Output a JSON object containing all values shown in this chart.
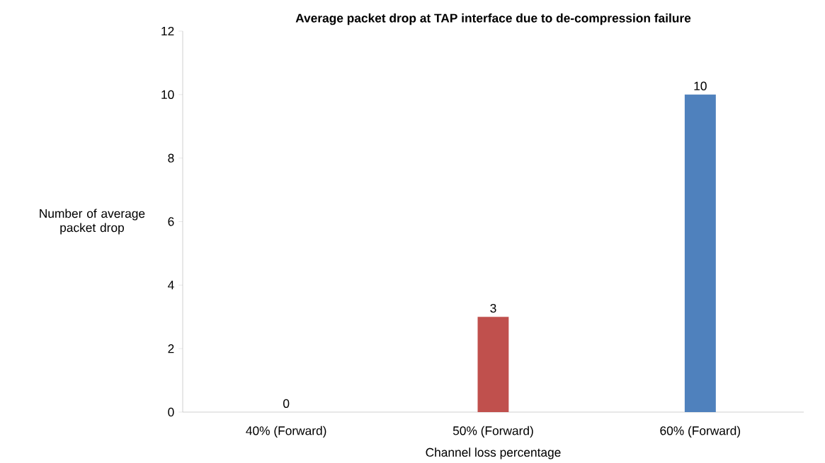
{
  "chart_data": {
    "type": "bar",
    "title": "Average packet drop at TAP interface due to de-compression failure",
    "xlabel": "Channel loss percentage",
    "ylabel": "Number of average packet drop",
    "categories": [
      "40% (Forward)",
      "50% (Forward)",
      "60% (Forward)"
    ],
    "values": [
      0,
      3,
      10
    ],
    "colors": [
      "#4f81bd",
      "#c0504d",
      "#4f81bd"
    ],
    "ylim": [
      0,
      12
    ],
    "yticks": [
      0,
      2,
      4,
      6,
      8,
      10,
      12
    ],
    "data_labels": true,
    "grid": false
  }
}
